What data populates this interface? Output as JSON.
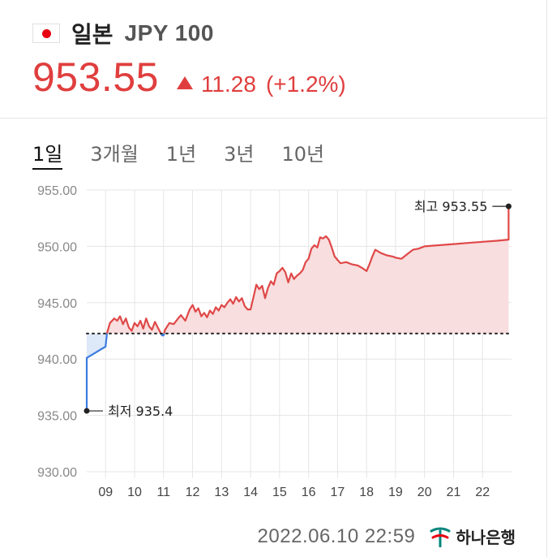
{
  "header": {
    "flag_icon": "japan-flag-icon",
    "country": "일본",
    "pair": "JPY 100",
    "price": "953.55",
    "change": "11.28",
    "change_pct": "(+1.2%)",
    "up_color": "#e03e3e"
  },
  "tabs": [
    {
      "label": "1일",
      "active": true
    },
    {
      "label": "3개월",
      "active": false
    },
    {
      "label": "1년",
      "active": false
    },
    {
      "label": "3년",
      "active": false
    },
    {
      "label": "10년",
      "active": false
    }
  ],
  "chart_data": {
    "type": "line",
    "ylim": [
      930,
      955
    ],
    "y_ticks": [
      "955.00",
      "950.00",
      "945.00",
      "940.00",
      "935.00",
      "930.00"
    ],
    "x_ticks": [
      "09",
      "10",
      "11",
      "12",
      "13",
      "14",
      "15",
      "16",
      "17",
      "18",
      "19",
      "20",
      "21",
      "22"
    ],
    "x_range": [
      8.35,
      23
    ],
    "reference_value": 942.27,
    "max_label": "최고 953.55",
    "min_label": "최저 935.4",
    "colors": {
      "above": "#e04848",
      "below": "#3b7be0",
      "fill_above": "#f8dede",
      "fill_below": "#dde8f8"
    },
    "series": [
      {
        "x": [
          8.35,
          8.35,
          9.0,
          9.05,
          9.15,
          9.3,
          9.4,
          9.5,
          9.6,
          9.7,
          9.8,
          9.9,
          10.0,
          10.1,
          10.2,
          10.3,
          10.4,
          10.5,
          10.6,
          10.7,
          10.8,
          10.9,
          10.95,
          11.0,
          11.05,
          11.2,
          11.35,
          11.5,
          11.6,
          11.75,
          11.9,
          12.0,
          12.1,
          12.2,
          12.3,
          12.4,
          12.5,
          12.6,
          12.7,
          12.8,
          12.9,
          13.0,
          13.1,
          13.2,
          13.3,
          13.4,
          13.5,
          13.6,
          13.7,
          13.8,
          13.9,
          14.0,
          14.1,
          14.2,
          14.3,
          14.4,
          14.5,
          14.6,
          14.7,
          14.8,
          14.9,
          15.0,
          15.1,
          15.2,
          15.3,
          15.4,
          15.5,
          15.6,
          15.7,
          15.8,
          15.9,
          16.0,
          16.1,
          16.2,
          16.3,
          16.4,
          16.5,
          16.6,
          16.7,
          16.8,
          16.9,
          17.0,
          17.1,
          17.3,
          17.5,
          17.7,
          17.9,
          18.0,
          18.1,
          18.2,
          18.3,
          18.5,
          18.7,
          18.9,
          19.0,
          19.2,
          19.4,
          19.6,
          19.8,
          20.0,
          20.5,
          21.0,
          21.5,
          22.0,
          22.5,
          22.9,
          22.9
        ],
        "y": [
          935.4,
          940.1,
          941.1,
          942.3,
          943.2,
          943.6,
          943.4,
          943.8,
          943.1,
          943.6,
          942.8,
          942.5,
          943.2,
          942.9,
          943.4,
          942.7,
          943.6,
          942.9,
          942.6,
          943.3,
          942.8,
          942.3,
          942.1,
          942.1,
          942.6,
          943.2,
          943.1,
          943.6,
          943.9,
          943.4,
          944.4,
          944.8,
          944.2,
          944.5,
          943.8,
          944.1,
          943.7,
          944.3,
          944.0,
          944.6,
          944.3,
          944.8,
          944.6,
          945.0,
          945.3,
          944.9,
          945.5,
          945.1,
          945.4,
          944.7,
          944.4,
          944.4,
          945.5,
          946.6,
          946.2,
          946.5,
          945.4,
          946.3,
          946.9,
          946.6,
          947.6,
          947.8,
          948.1,
          947.7,
          946.8,
          947.6,
          947.1,
          947.4,
          947.6,
          947.9,
          948.6,
          948.9,
          949.8,
          950.1,
          949.9,
          950.8,
          950.7,
          950.9,
          950.6,
          949.9,
          949.1,
          948.8,
          948.5,
          948.6,
          948.4,
          948.3,
          948.0,
          947.8,
          948.4,
          949.1,
          949.7,
          949.4,
          949.2,
          949.1,
          949.0,
          948.9,
          949.3,
          949.7,
          949.8,
          950.0,
          950.1,
          950.2,
          950.3,
          950.4,
          950.5,
          950.6,
          953.55
        ]
      }
    ]
  },
  "footer": {
    "timestamp": "2022.06.10 22:59",
    "brand": "하나은행",
    "brand_icon": "hana-bank-logo-icon",
    "brand_color": "#00857b"
  }
}
